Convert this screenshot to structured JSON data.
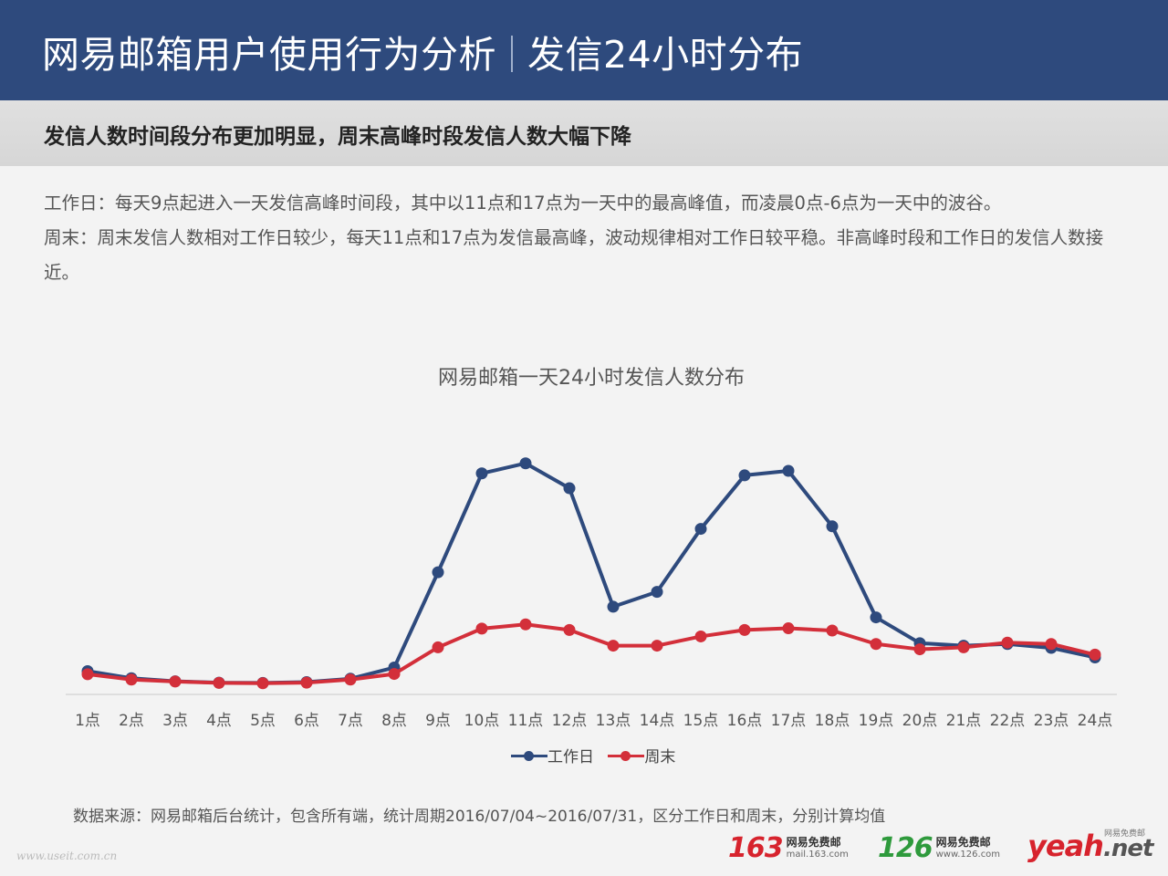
{
  "header": {
    "title_main": "网易邮箱用户使用行为分析",
    "title_sub": "发信24小时分布"
  },
  "subheader": "发信人数时间段分布更加明显，周末高峰时段发信人数大幅下降",
  "description": {
    "weekday": "工作日：每天9点起进入一天发信高峰时间段，其中以11点和17点为一天中的最高峰值，而凌晨0点-6点为一天中的波谷。",
    "weekend": "周末：周末发信人数相对工作日较少，每天11点和17点为发信最高峰，波动规律相对工作日较平稳。非高峰时段和工作日的发信人数接近。"
  },
  "chart_data": {
    "type": "line",
    "title": "网易邮箱一天24小时发信人数分布",
    "categories": [
      "1点",
      "2点",
      "3点",
      "4点",
      "5点",
      "6点",
      "7点",
      "8点",
      "9点",
      "10点",
      "11点",
      "12点",
      "13点",
      "14点",
      "15点",
      "16点",
      "17点",
      "18点",
      "19点",
      "20点",
      "21点",
      "22点",
      "23点",
      "24点"
    ],
    "series": [
      {
        "name": "工作日",
        "color": "#2e4a7d",
        "values": [
          8.3,
          5.8,
          4.7,
          4.2,
          4.1,
          4.4,
          5.6,
          9.6,
          43.6,
          78.9,
          82.5,
          73.6,
          31.3,
          36.6,
          59.1,
          78.2,
          79.8,
          60.0,
          27.5,
          18.3,
          17.4,
          18.0,
          16.6,
          13.2
        ]
      },
      {
        "name": "周末",
        "color": "#d32f3a",
        "values": [
          7.2,
          5.3,
          4.6,
          4.1,
          4.0,
          4.2,
          5.3,
          7.3,
          16.8,
          23.5,
          25.0,
          23.0,
          17.4,
          17.4,
          20.7,
          23.0,
          23.6,
          22.8,
          18.0,
          16.1,
          16.8,
          18.5,
          18.0,
          14.2
        ]
      }
    ],
    "ylim": [
      0,
      100
    ],
    "grid": false,
    "legend_position": "bottom"
  },
  "source": "数据来源：网易邮箱后台统计，包含所有端，统计周期2016/07/04~2016/07/31，区分工作日和周末，分别计算均值",
  "watermark": "www.useit.com.cn",
  "logos": {
    "l163": {
      "num": "163",
      "a": "网易免费邮",
      "b": "mail.163.com",
      "color": "#d7232d"
    },
    "l126": {
      "num": "126",
      "a": "网易免费邮",
      "b": "www.126.com",
      "color": "#2e9a3c"
    },
    "yeah": {
      "small": "网易免费邮",
      "main": "yeah",
      "net": ".net"
    }
  }
}
